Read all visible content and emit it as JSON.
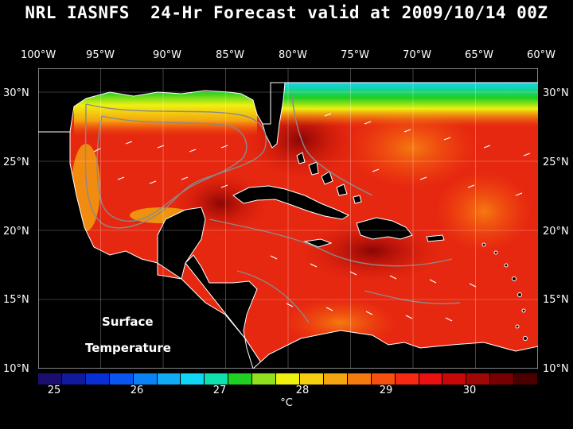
{
  "title": "NRL IASNFS  24-Hr Forecast valid at 2009/10/14 00Z",
  "lon_labels": [
    "100°W",
    "95°W",
    "90°W",
    "85°W",
    "80°W",
    "75°W",
    "70°W",
    "65°W",
    "60°W"
  ],
  "lat_labels": [
    "30°N",
    "25°N",
    "20°N",
    "15°N",
    "10°N"
  ],
  "map_label_line1": "Surface",
  "map_label_line2": "Temperature",
  "colorbar": {
    "colors": [
      "#1a0f6e",
      "#101a9a",
      "#0a2fd0",
      "#0a55f0",
      "#0a82f5",
      "#10aaf5",
      "#10d5f5",
      "#10e0b0",
      "#20d020",
      "#90e020",
      "#f0f010",
      "#f5d010",
      "#f5a510",
      "#f57a10",
      "#f55010",
      "#f52a10",
      "#e81010",
      "#c80808",
      "#a00808",
      "#780000",
      "#4a0000"
    ],
    "tick_labels": [
      "25",
      "26",
      "27",
      "28",
      "29",
      "30"
    ],
    "unit": "°C"
  }
}
